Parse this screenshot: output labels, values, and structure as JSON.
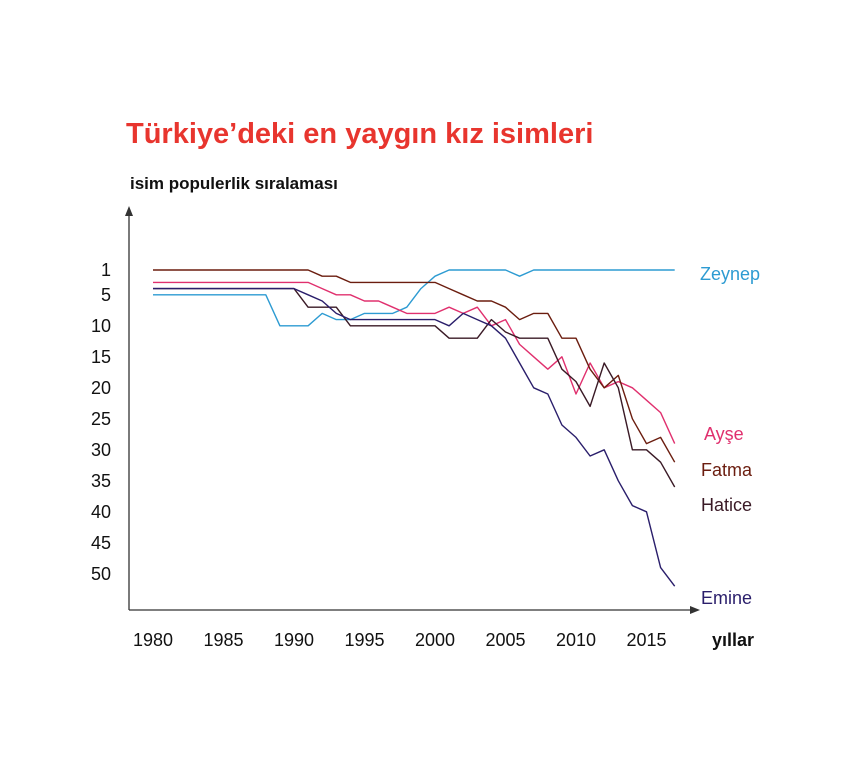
{
  "colors": {
    "title": "#e8352e",
    "axis": "#333333",
    "Zeynep": "#2d9bd2",
    "Ayşe": "#e0306e",
    "Fatma": "#6b1d0f",
    "Hatice": "#3a1a26",
    "Emine": "#2a1e6b"
  },
  "chart_data": {
    "type": "line",
    "title": "Türkiye’deki en yaygın kız isimleri",
    "ylabel": "isim populerlik sıralaması",
    "xlabel": "yıllar",
    "x_ticks": [
      1980,
      1985,
      1990,
      1995,
      2000,
      2005,
      2010,
      2015
    ],
    "y_ticks": [
      1,
      5,
      10,
      15,
      20,
      25,
      30,
      35,
      40,
      45,
      50
    ],
    "xlim": [
      1979,
      2018
    ],
    "ylim": [
      1,
      54
    ],
    "y_inverted": true,
    "grid": false,
    "legend": "line-end labels on the right",
    "series": [
      {
        "name": "Zeynep",
        "x": [
          1980,
          1988,
          1989,
          1991,
          1992,
          1993,
          1994,
          1995,
          1997,
          1998,
          1999,
          2000,
          2001,
          2002,
          2003,
          2004,
          2005,
          2006,
          2007,
          2008,
          2017
        ],
        "y": [
          5,
          5,
          10,
          10,
          8,
          9,
          9,
          8,
          8,
          7,
          4,
          2,
          1,
          1,
          1,
          1,
          1,
          2,
          1,
          1,
          1
        ]
      },
      {
        "name": "Ayşe",
        "x": [
          1980,
          1991,
          1992,
          1993,
          1994,
          1995,
          1996,
          1997,
          1998,
          1999,
          2000,
          2001,
          2002,
          2003,
          2004,
          2005,
          2006,
          2007,
          2008,
          2009,
          2010,
          2011,
          2012,
          2013,
          2014,
          2015,
          2016,
          2017
        ],
        "y": [
          3,
          3,
          4,
          5,
          5,
          6,
          6,
          7,
          8,
          8,
          8,
          7,
          8,
          7,
          10,
          9,
          13,
          15,
          17,
          15,
          21,
          16,
          20,
          19,
          20,
          22,
          24,
          29
        ]
      },
      {
        "name": "Fatma",
        "x": [
          1980,
          1991,
          1992,
          1993,
          1994,
          1995,
          1996,
          1997,
          1998,
          1999,
          2000,
          2001,
          2002,
          2003,
          2004,
          2005,
          2006,
          2007,
          2008,
          2009,
          2010,
          2011,
          2012,
          2013,
          2014,
          2015,
          2016,
          2017
        ],
        "y": [
          1,
          1,
          2,
          2,
          3,
          3,
          3,
          3,
          3,
          3,
          3,
          4,
          5,
          6,
          6,
          7,
          9,
          8,
          8,
          12,
          12,
          17,
          20,
          18,
          25,
          29,
          28,
          32
        ]
      },
      {
        "name": "Hatice",
        "x": [
          1980,
          1990,
          1991,
          1992,
          1993,
          1994,
          1995,
          1996,
          1997,
          1998,
          1999,
          2000,
          2001,
          2002,
          2003,
          2004,
          2005,
          2006,
          2007,
          2008,
          2009,
          2010,
          2011,
          2012,
          2013,
          2014,
          2015,
          2016,
          2017
        ],
        "y": [
          4,
          4,
          7,
          7,
          7,
          10,
          10,
          10,
          10,
          10,
          10,
          10,
          12,
          12,
          12,
          9,
          11,
          12,
          12,
          12,
          17,
          19,
          23,
          16,
          20,
          30,
          30,
          32,
          36
        ]
      },
      {
        "name": "Emine",
        "x": [
          1980,
          1990,
          1991,
          1992,
          1993,
          1994,
          1995,
          1996,
          1997,
          1998,
          1999,
          2000,
          2001,
          2002,
          2003,
          2004,
          2005,
          2006,
          2007,
          2008,
          2009,
          2010,
          2011,
          2012,
          2013,
          2014,
          2015,
          2016,
          2017
        ],
        "y": [
          4,
          4,
          5,
          6,
          8,
          9,
          9,
          9,
          9,
          9,
          9,
          9,
          10,
          8,
          9,
          10,
          12,
          16,
          20,
          21,
          26,
          28,
          31,
          30,
          35,
          39,
          40,
          49,
          52
        ]
      }
    ]
  }
}
